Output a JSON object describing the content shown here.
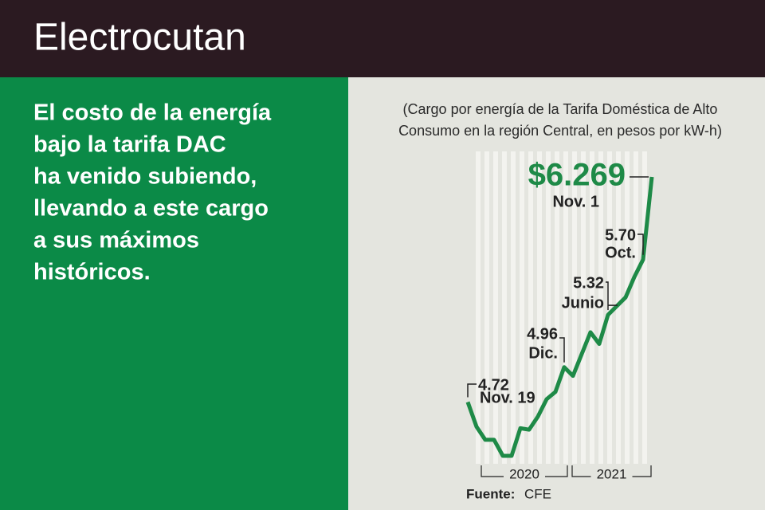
{
  "title": "Electrocutan",
  "text_lines": [
    "El costo de la energía",
    "bajo la tarifa DAC",
    "ha venido subiendo,",
    "llevando a este cargo",
    "a sus máximos",
    "históricos."
  ],
  "chart_data": {
    "type": "line",
    "subtitle_lines": [
      "(Cargo por energía de la Tarifa Doméstica de Alto",
      "Consumo en la región Central, en pesos por kW-h)"
    ],
    "categories": [
      null,
      null,
      null,
      null,
      null,
      null,
      null,
      null,
      null,
      null,
      null,
      null,
      null,
      null,
      null,
      null,
      null,
      null,
      null,
      null,
      null,
      null
    ],
    "values": [
      4.72,
      4.55,
      4.46,
      4.46,
      4.35,
      4.35,
      4.54,
      4.53,
      4.62,
      4.74,
      4.79,
      4.96,
      4.9,
      5.05,
      5.2,
      5.12,
      5.32,
      5.38,
      5.44,
      5.58,
      5.7,
      6.269
    ],
    "value_labels": [
      "4.72",
      null,
      null,
      null,
      null,
      null,
      null,
      null,
      null,
      null,
      null,
      "4.96",
      null,
      null,
      null,
      null,
      "5.32",
      null,
      null,
      null,
      "5.70",
      "$6.269"
    ],
    "notes": [
      "Nov. 19",
      null,
      null,
      null,
      null,
      null,
      null,
      null,
      null,
      null,
      null,
      "Dic.",
      null,
      null,
      null,
      null,
      "Junio",
      null,
      null,
      null,
      "Oct.",
      "Nov. 1"
    ],
    "color": "#1e8a47",
    "periods": [
      "2020",
      "2021"
    ]
  },
  "source": {
    "label": "Fuente:",
    "text": "CFE"
  }
}
